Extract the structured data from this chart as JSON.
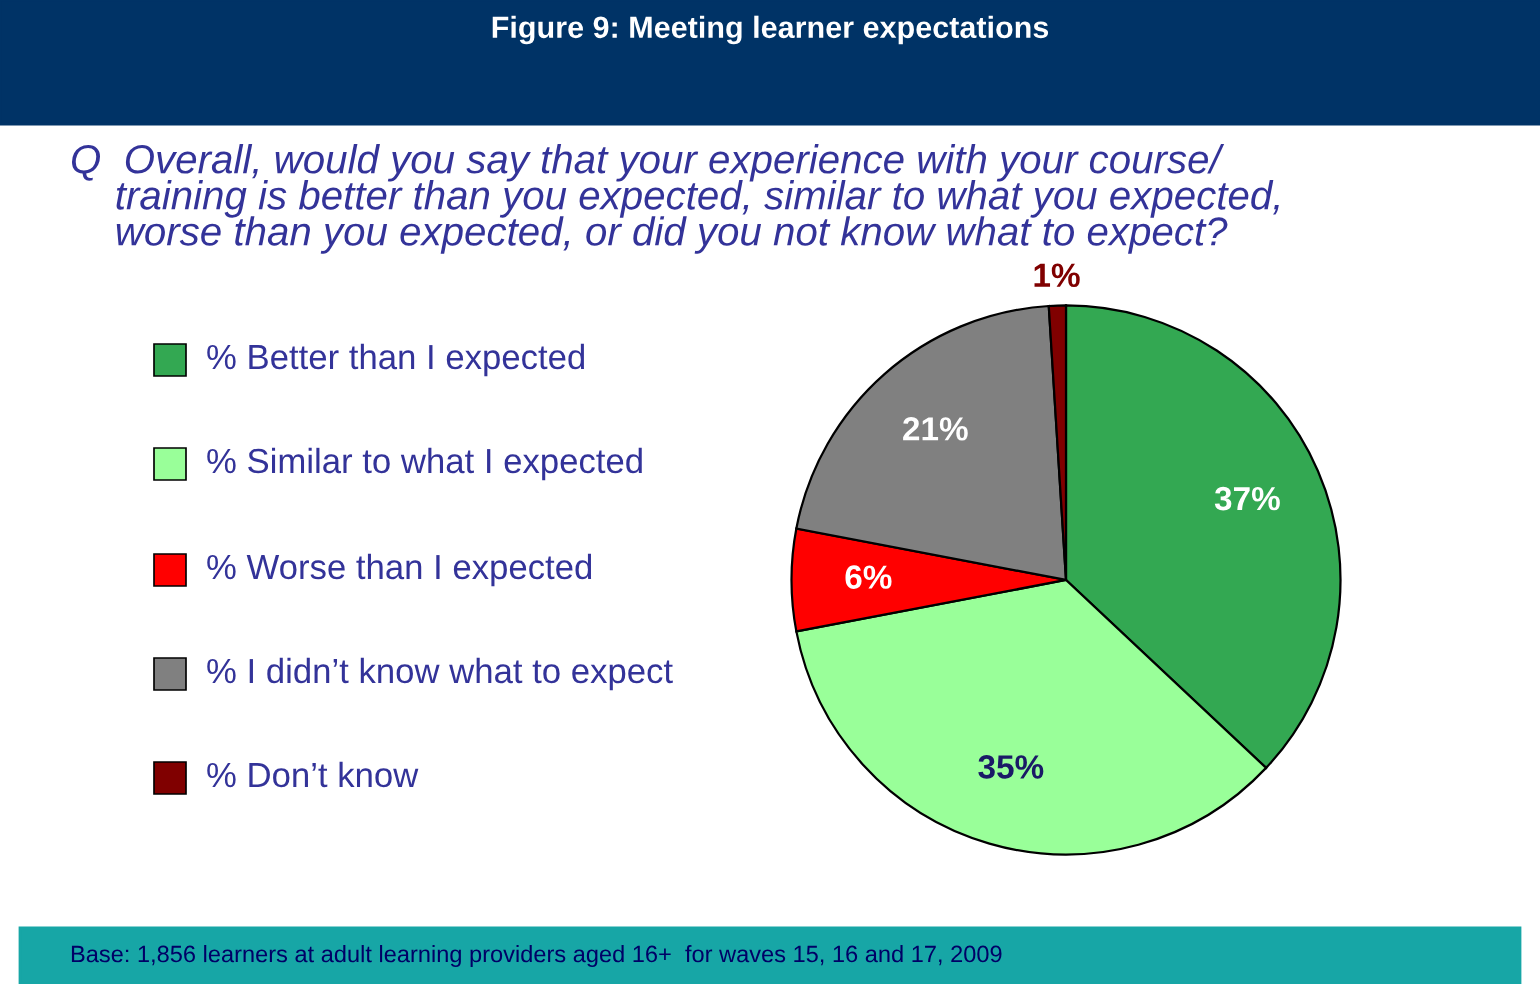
{
  "chart_data": {
    "type": "pie",
    "title": "Figure 9: Meeting learner expectations",
    "subtitle": "Q  Overall, would you say that your experience with your course/\n    training is better than you expected, similar to what you expected,\n    worse than you expected, or did you not know what to expect?",
    "categories": [
      "% Better than I expected",
      "% Similar to what I expected",
      "% Worse than I expected",
      "% I didn’t know what to expect",
      "% Don’t know"
    ],
    "values": [
      37,
      35,
      6,
      21,
      1
    ],
    "value_labels": [
      "37%",
      "35%",
      "6%",
      "21%",
      "1%"
    ],
    "colors": [
      "#33a852",
      "#99ff99",
      "#ff0000",
      "#808080",
      "#800000"
    ],
    "legend": "left",
    "annotations": [
      "Base: 1,856 learners at adult learning providers aged 16+  for waves 15, 16 and 17, 2009"
    ]
  }
}
